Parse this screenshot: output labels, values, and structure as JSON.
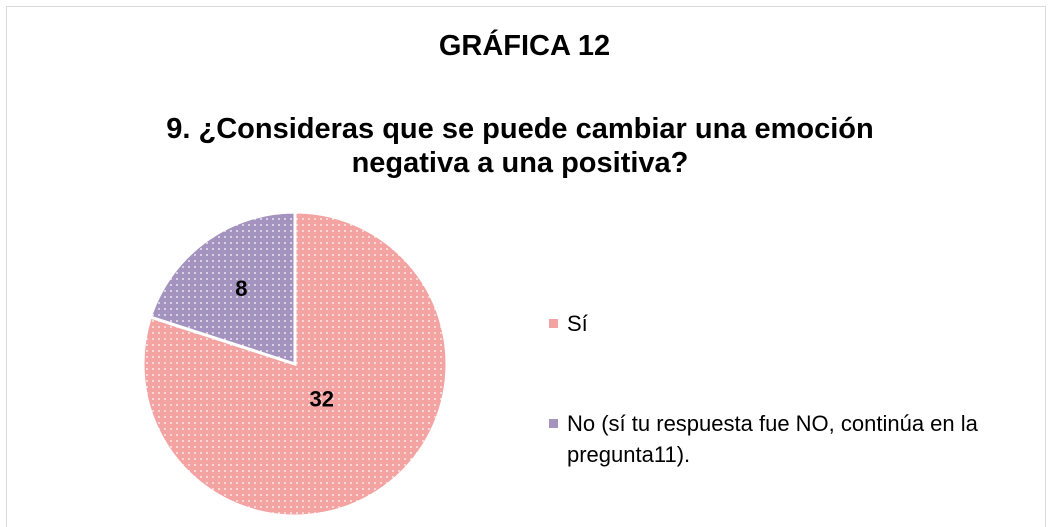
{
  "chart_data": {
    "type": "pie",
    "title": "GRÁFICA 12",
    "subtitle": "9. ¿Consideras que se puede cambiar una emoción negativa a una positiva?",
    "categories": [
      "Sí",
      "No (sí tu respuesta fue NO, continúa en la pregunta11)."
    ],
    "values": [
      32,
      8
    ],
    "colors": [
      "#f4a3a3",
      "#a493bf"
    ],
    "legend": "right"
  }
}
